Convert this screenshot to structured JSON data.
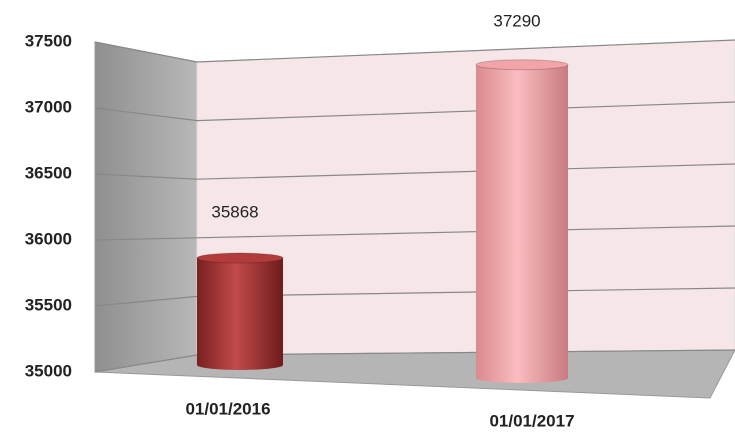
{
  "chart_data": {
    "type": "bar",
    "categories": [
      "01/01/2016",
      "01/01/2017"
    ],
    "series": [
      {
        "values": [
          35868,
          37290
        ],
        "colors": [
          "#b23b3b",
          "#f2a4a8"
        ]
      }
    ],
    "ylim": [
      35000,
      37500
    ],
    "yticks": [
      35000,
      35500,
      36000,
      36500,
      37000,
      37500
    ],
    "grid": true
  }
}
